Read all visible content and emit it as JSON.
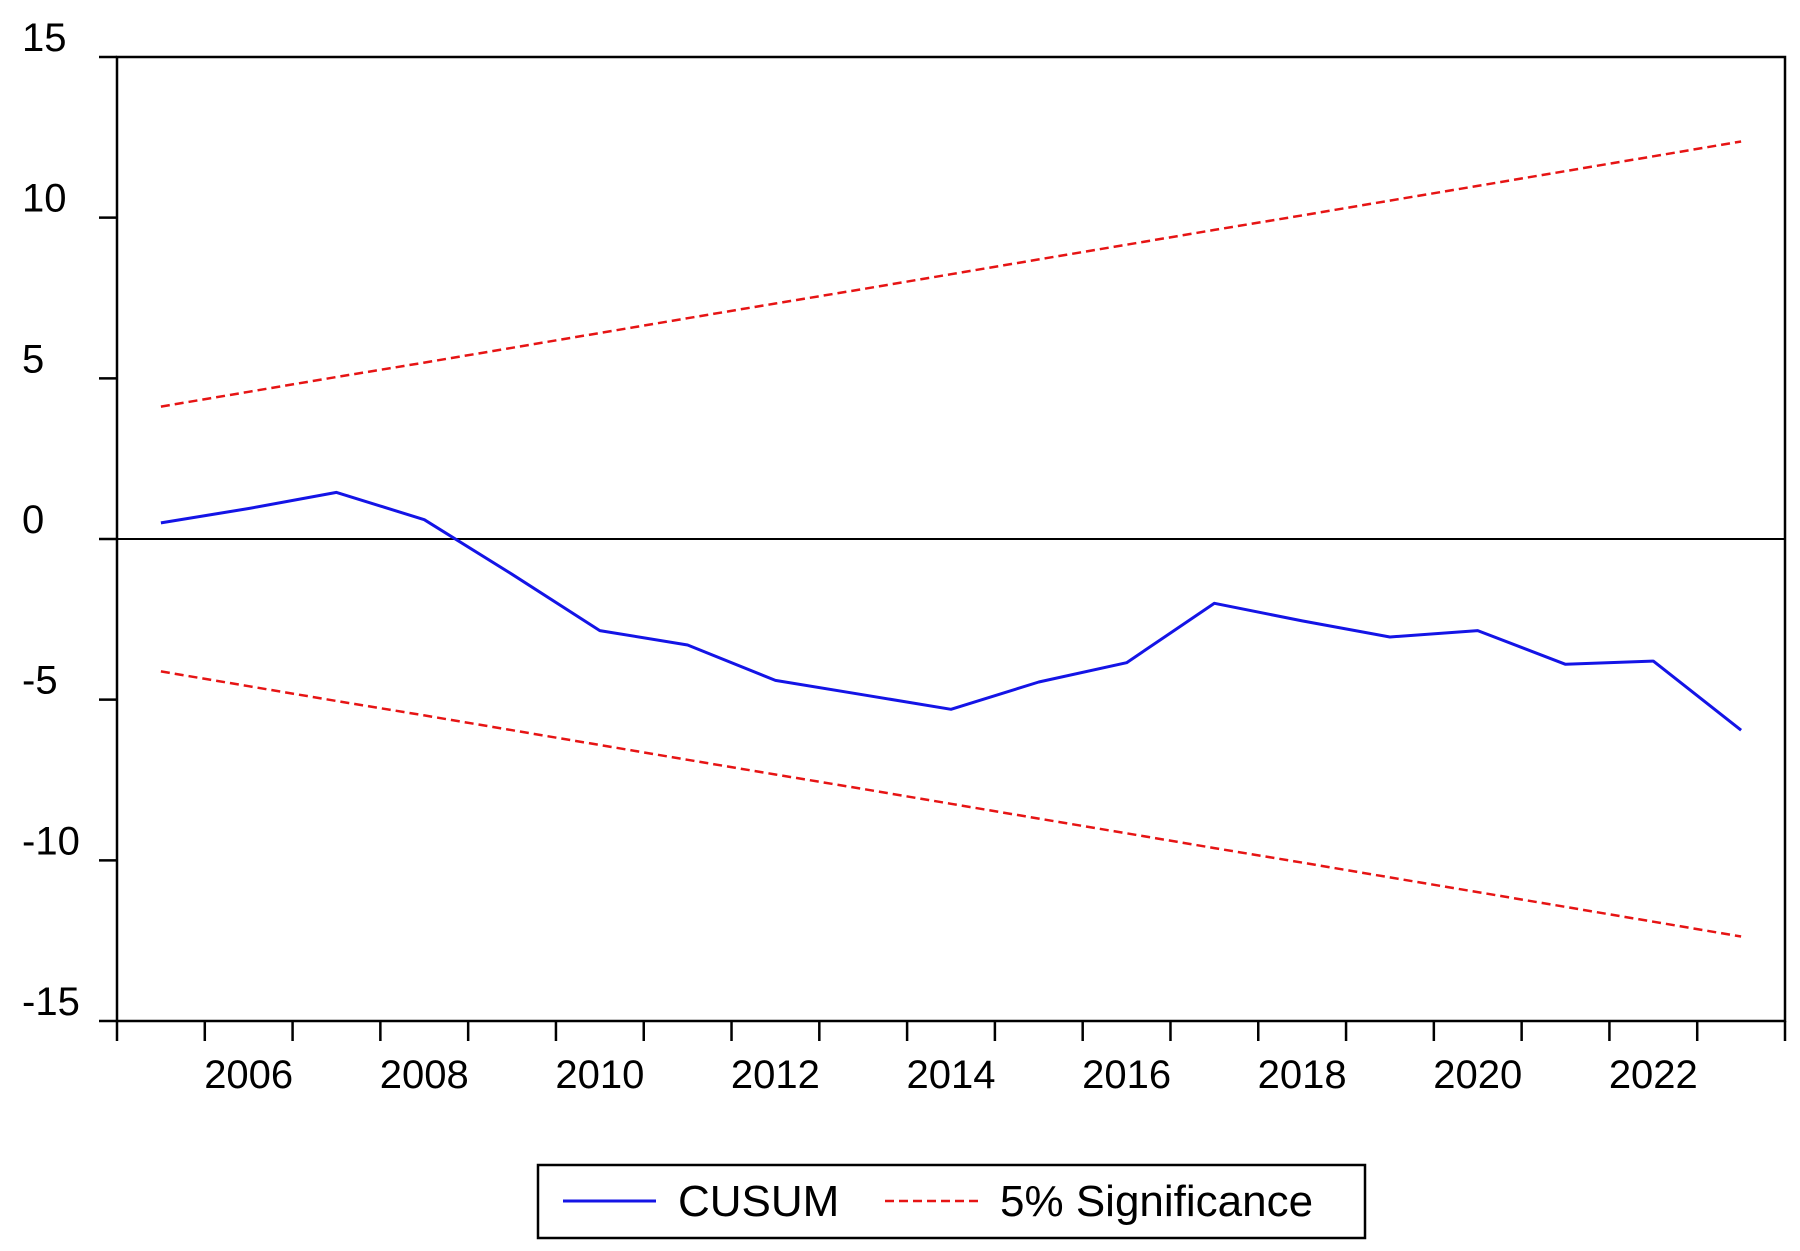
{
  "chart_data": {
    "type": "line",
    "title": "",
    "xlabel": "",
    "ylabel": "",
    "xlim": [
      2004.5,
      2023.5
    ],
    "ylim": [
      -15,
      15
    ],
    "x_ticks": [
      2006,
      2008,
      2010,
      2012,
      2014,
      2016,
      2018,
      2020,
      2022
    ],
    "y_ticks": [
      -15,
      -10,
      -5,
      0,
      5,
      10,
      15
    ],
    "grid": false,
    "zero_line": true,
    "legend_position": "bottom-center",
    "x": [
      2005,
      2006,
      2007,
      2008,
      2009,
      2010,
      2011,
      2012,
      2013,
      2014,
      2015,
      2016,
      2017,
      2018,
      2019,
      2020,
      2021,
      2022,
      2023
    ],
    "series": [
      {
        "name": "CUSUM",
        "color": "#1414e6",
        "style": "solid",
        "values": [
          0.5,
          0.95,
          1.45,
          0.6,
          -1.1,
          -2.85,
          -3.3,
          -4.4,
          -4.85,
          -5.3,
          -4.45,
          -3.85,
          -2.0,
          -2.55,
          -3.05,
          -2.85,
          -3.9,
          -3.8,
          -5.95
        ]
      },
      {
        "name": "5% Significance",
        "color": "#e61414",
        "style": "dashed",
        "values": [
          4.12,
          4.58,
          5.04,
          5.49,
          5.95,
          6.41,
          6.87,
          7.33,
          7.78,
          8.24,
          8.7,
          9.16,
          9.62,
          10.07,
          10.53,
          10.99,
          11.45,
          11.91,
          12.37
        ]
      },
      {
        "name": "5% Significance",
        "color": "#e61414",
        "style": "dashed",
        "values": [
          -4.12,
          -4.58,
          -5.04,
          -5.49,
          -5.95,
          -6.41,
          -6.87,
          -7.33,
          -7.78,
          -8.24,
          -8.7,
          -9.16,
          -9.62,
          -10.07,
          -10.53,
          -10.99,
          -11.45,
          -11.91,
          -12.37
        ]
      }
    ],
    "legend": [
      {
        "label": "CUSUM",
        "color": "#1414e6",
        "style": "solid"
      },
      {
        "label": "5% Significance",
        "color": "#e61414",
        "style": "dashed"
      }
    ]
  }
}
